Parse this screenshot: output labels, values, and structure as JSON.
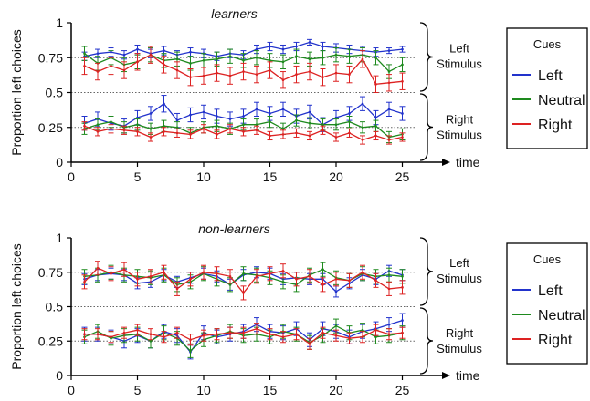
{
  "colors": {
    "left": "#2233cc",
    "neutral": "#1e8a1e",
    "right": "#dd2222",
    "axis": "#000000",
    "ref": "#666666"
  },
  "chart_data": [
    {
      "type": "line",
      "title": "learners",
      "ylabel": "Proportion left choices",
      "xlabel": "time",
      "xlim": [
        0,
        26
      ],
      "ylim": [
        0,
        1
      ],
      "xticks": [
        0,
        5,
        10,
        15,
        20,
        25
      ],
      "yticks": [
        0,
        0.25,
        0.5,
        0.75,
        1
      ],
      "ytick_labels": [
        "0",
        "0.25",
        "0.5",
        "0.75",
        "1"
      ],
      "reference_lines": [
        0.75,
        0.5,
        0.25
      ],
      "brace_labels": [
        {
          "line1": "Left",
          "line2": "Stimulus"
        },
        {
          "line1": "Right",
          "line2": "Stimulus"
        }
      ],
      "legend": {
        "title": "Cues",
        "placement": "right",
        "entries": [
          "Left",
          "Neutral",
          "Right"
        ]
      },
      "x": [
        1,
        2,
        3,
        4,
        5,
        6,
        7,
        8,
        9,
        10,
        11,
        12,
        13,
        14,
        15,
        16,
        17,
        18,
        19,
        20,
        21,
        22,
        23,
        24,
        25
      ],
      "series": [
        {
          "name": "Left",
          "color_key": "left",
          "group": "left-stimulus",
          "values": [
            0.76,
            0.78,
            0.79,
            0.77,
            0.81,
            0.78,
            0.8,
            0.77,
            0.79,
            0.78,
            0.76,
            0.78,
            0.77,
            0.81,
            0.83,
            0.81,
            0.83,
            0.86,
            0.83,
            0.82,
            0.81,
            0.8,
            0.79,
            0.8,
            0.81
          ],
          "errors": [
            0.03,
            0.03,
            0.03,
            0.03,
            0.03,
            0.03,
            0.03,
            0.03,
            0.03,
            0.03,
            0.03,
            0.03,
            0.03,
            0.03,
            0.03,
            0.03,
            0.03,
            0.02,
            0.03,
            0.03,
            0.03,
            0.03,
            0.03,
            0.02,
            0.02
          ]
        },
        {
          "name": "Neutral",
          "color_key": "neutral",
          "group": "left-stimulus",
          "values": [
            0.78,
            0.71,
            0.75,
            0.7,
            0.72,
            0.77,
            0.73,
            0.74,
            0.71,
            0.73,
            0.74,
            0.76,
            0.73,
            0.75,
            0.73,
            0.72,
            0.76,
            0.74,
            0.75,
            0.77,
            0.76,
            0.77,
            0.75,
            0.65,
            0.7
          ],
          "errors": [
            0.05,
            0.05,
            0.05,
            0.05,
            0.05,
            0.05,
            0.05,
            0.05,
            0.05,
            0.05,
            0.05,
            0.05,
            0.05,
            0.05,
            0.05,
            0.05,
            0.05,
            0.05,
            0.05,
            0.05,
            0.05,
            0.05,
            0.05,
            0.05,
            0.05
          ]
        },
        {
          "name": "Right",
          "color_key": "right",
          "group": "left-stimulus",
          "values": [
            0.69,
            0.65,
            0.69,
            0.66,
            0.72,
            0.77,
            0.7,
            0.66,
            0.61,
            0.62,
            0.64,
            0.62,
            0.65,
            0.63,
            0.66,
            0.59,
            0.63,
            0.65,
            0.61,
            0.64,
            0.63,
            0.74,
            0.56,
            0.57,
            0.58
          ],
          "errors": [
            0.06,
            0.06,
            0.06,
            0.06,
            0.06,
            0.06,
            0.06,
            0.06,
            0.06,
            0.06,
            0.06,
            0.06,
            0.06,
            0.06,
            0.06,
            0.06,
            0.06,
            0.06,
            0.06,
            0.06,
            0.06,
            0.06,
            0.06,
            0.06,
            0.06
          ]
        },
        {
          "name": "Left",
          "color_key": "left",
          "group": "right-stimulus",
          "values": [
            0.28,
            0.31,
            0.28,
            0.26,
            0.32,
            0.35,
            0.42,
            0.3,
            0.34,
            0.36,
            0.33,
            0.31,
            0.33,
            0.38,
            0.35,
            0.38,
            0.33,
            0.36,
            0.27,
            0.32,
            0.35,
            0.42,
            0.32,
            0.38,
            0.35
          ],
          "errors": [
            0.05,
            0.05,
            0.05,
            0.05,
            0.05,
            0.05,
            0.06,
            0.05,
            0.05,
            0.05,
            0.05,
            0.05,
            0.05,
            0.05,
            0.05,
            0.05,
            0.05,
            0.05,
            0.05,
            0.05,
            0.05,
            0.05,
            0.05,
            0.05,
            0.05
          ]
        },
        {
          "name": "Neutral",
          "color_key": "neutral",
          "group": "right-stimulus",
          "values": [
            0.24,
            0.27,
            0.29,
            0.25,
            0.27,
            0.24,
            0.26,
            0.25,
            0.21,
            0.25,
            0.26,
            0.24,
            0.27,
            0.27,
            0.29,
            0.24,
            0.3,
            0.28,
            0.27,
            0.27,
            0.29,
            0.25,
            0.26,
            0.18,
            0.2
          ],
          "errors": [
            0.04,
            0.04,
            0.04,
            0.04,
            0.04,
            0.04,
            0.04,
            0.04,
            0.04,
            0.04,
            0.04,
            0.04,
            0.04,
            0.04,
            0.04,
            0.04,
            0.04,
            0.04,
            0.04,
            0.04,
            0.04,
            0.04,
            0.04,
            0.04,
            0.04
          ]
        },
        {
          "name": "Right",
          "color_key": "right",
          "group": "right-stimulus",
          "values": [
            0.26,
            0.22,
            0.24,
            0.23,
            0.22,
            0.18,
            0.22,
            0.21,
            0.2,
            0.24,
            0.2,
            0.24,
            0.22,
            0.23,
            0.19,
            0.2,
            0.21,
            0.19,
            0.23,
            0.18,
            0.21,
            0.16,
            0.19,
            0.16,
            0.18
          ],
          "errors": [
            0.03,
            0.03,
            0.03,
            0.03,
            0.03,
            0.03,
            0.03,
            0.03,
            0.03,
            0.03,
            0.03,
            0.03,
            0.03,
            0.03,
            0.03,
            0.03,
            0.03,
            0.03,
            0.03,
            0.03,
            0.03,
            0.03,
            0.03,
            0.03,
            0.03
          ]
        }
      ]
    },
    {
      "type": "line",
      "title": "non-learners",
      "ylabel": "Proportion left choices",
      "xlabel": "time",
      "xlim": [
        0,
        26
      ],
      "ylim": [
        0,
        1
      ],
      "xticks": [
        0,
        5,
        10,
        15,
        20,
        25
      ],
      "yticks": [
        0,
        0.25,
        0.5,
        0.75,
        1
      ],
      "ytick_labels": [
        "0",
        "0.25",
        "0.5",
        "0.75",
        "1"
      ],
      "reference_lines": [
        0.75,
        0.5,
        0.25
      ],
      "brace_labels": [
        {
          "line1": "Left",
          "line2": "Stimulus"
        },
        {
          "line1": "Right",
          "line2": "Stimulus"
        }
      ],
      "legend": {
        "title": "Cues",
        "placement": "right",
        "entries": [
          "Left",
          "Neutral",
          "Right"
        ]
      },
      "x": [
        1,
        2,
        3,
        4,
        5,
        6,
        7,
        8,
        9,
        10,
        11,
        12,
        13,
        14,
        15,
        16,
        17,
        18,
        19,
        20,
        21,
        22,
        23,
        24,
        25
      ],
      "series": [
        {
          "name": "Left",
          "color_key": "left",
          "group": "left-stimulus",
          "values": [
            0.7,
            0.73,
            0.74,
            0.73,
            0.67,
            0.68,
            0.73,
            0.68,
            0.71,
            0.74,
            0.72,
            0.66,
            0.73,
            0.75,
            0.74,
            0.7,
            0.71,
            0.7,
            0.7,
            0.61,
            0.67,
            0.73,
            0.7,
            0.76,
            0.73
          ],
          "errors": [
            0.04,
            0.04,
            0.04,
            0.04,
            0.04,
            0.04,
            0.04,
            0.04,
            0.04,
            0.04,
            0.04,
            0.04,
            0.04,
            0.04,
            0.04,
            0.04,
            0.04,
            0.04,
            0.04,
            0.04,
            0.04,
            0.04,
            0.04,
            0.04,
            0.04
          ]
        },
        {
          "name": "Neutral",
          "color_key": "neutral",
          "group": "left-stimulus",
          "values": [
            0.72,
            0.73,
            0.75,
            0.73,
            0.72,
            0.71,
            0.73,
            0.66,
            0.68,
            0.74,
            0.7,
            0.66,
            0.74,
            0.73,
            0.71,
            0.68,
            0.66,
            0.73,
            0.77,
            0.71,
            0.69,
            0.74,
            0.72,
            0.73,
            0.72
          ],
          "errors": [
            0.05,
            0.05,
            0.05,
            0.05,
            0.05,
            0.05,
            0.05,
            0.05,
            0.05,
            0.05,
            0.05,
            0.05,
            0.05,
            0.05,
            0.05,
            0.05,
            0.05,
            0.05,
            0.05,
            0.05,
            0.05,
            0.05,
            0.05,
            0.05,
            0.05
          ]
        },
        {
          "name": "Right",
          "color_key": "right",
          "group": "left-stimulus",
          "values": [
            0.68,
            0.78,
            0.74,
            0.77,
            0.7,
            0.72,
            0.75,
            0.63,
            0.7,
            0.75,
            0.74,
            0.72,
            0.6,
            0.72,
            0.74,
            0.76,
            0.7,
            0.72,
            0.66,
            0.7,
            0.69,
            0.75,
            0.69,
            0.63,
            0.64
          ],
          "errors": [
            0.05,
            0.05,
            0.05,
            0.05,
            0.05,
            0.05,
            0.05,
            0.05,
            0.05,
            0.05,
            0.05,
            0.05,
            0.05,
            0.05,
            0.05,
            0.05,
            0.05,
            0.05,
            0.05,
            0.05,
            0.05,
            0.05,
            0.05,
            0.05,
            0.05
          ]
        },
        {
          "name": "Left",
          "color_key": "left",
          "group": "right-stimulus",
          "values": [
            0.3,
            0.3,
            0.28,
            0.25,
            0.29,
            0.25,
            0.32,
            0.29,
            0.17,
            0.31,
            0.28,
            0.3,
            0.32,
            0.37,
            0.32,
            0.31,
            0.34,
            0.26,
            0.34,
            0.32,
            0.28,
            0.32,
            0.34,
            0.37,
            0.4
          ],
          "errors": [
            0.05,
            0.05,
            0.05,
            0.05,
            0.05,
            0.05,
            0.05,
            0.05,
            0.05,
            0.05,
            0.05,
            0.05,
            0.05,
            0.05,
            0.05,
            0.05,
            0.05,
            0.05,
            0.05,
            0.05,
            0.05,
            0.05,
            0.05,
            0.05,
            0.05
          ]
        },
        {
          "name": "Neutral",
          "color_key": "neutral",
          "group": "right-stimulus",
          "values": [
            0.28,
            0.32,
            0.27,
            0.29,
            0.3,
            0.25,
            0.31,
            0.27,
            0.18,
            0.26,
            0.29,
            0.32,
            0.29,
            0.3,
            0.28,
            0.32,
            0.3,
            0.24,
            0.29,
            0.36,
            0.31,
            0.33,
            0.28,
            0.29,
            0.31
          ],
          "errors": [
            0.05,
            0.05,
            0.05,
            0.05,
            0.05,
            0.05,
            0.05,
            0.05,
            0.05,
            0.05,
            0.05,
            0.05,
            0.05,
            0.05,
            0.05,
            0.05,
            0.05,
            0.05,
            0.05,
            0.05,
            0.05,
            0.05,
            0.05,
            0.05,
            0.05
          ]
        },
        {
          "name": "Right",
          "color_key": "right",
          "group": "right-stimulus",
          "values": [
            0.3,
            0.3,
            0.28,
            0.31,
            0.33,
            0.3,
            0.28,
            0.31,
            0.26,
            0.29,
            0.3,
            0.31,
            0.31,
            0.34,
            0.3,
            0.28,
            0.3,
            0.23,
            0.31,
            0.29,
            0.27,
            0.28,
            0.33,
            0.3,
            0.31
          ],
          "errors": [
            0.04,
            0.04,
            0.04,
            0.04,
            0.04,
            0.04,
            0.04,
            0.04,
            0.04,
            0.04,
            0.04,
            0.04,
            0.04,
            0.04,
            0.04,
            0.04,
            0.04,
            0.04,
            0.04,
            0.04,
            0.04,
            0.04,
            0.04,
            0.04,
            0.04
          ]
        }
      ]
    }
  ]
}
